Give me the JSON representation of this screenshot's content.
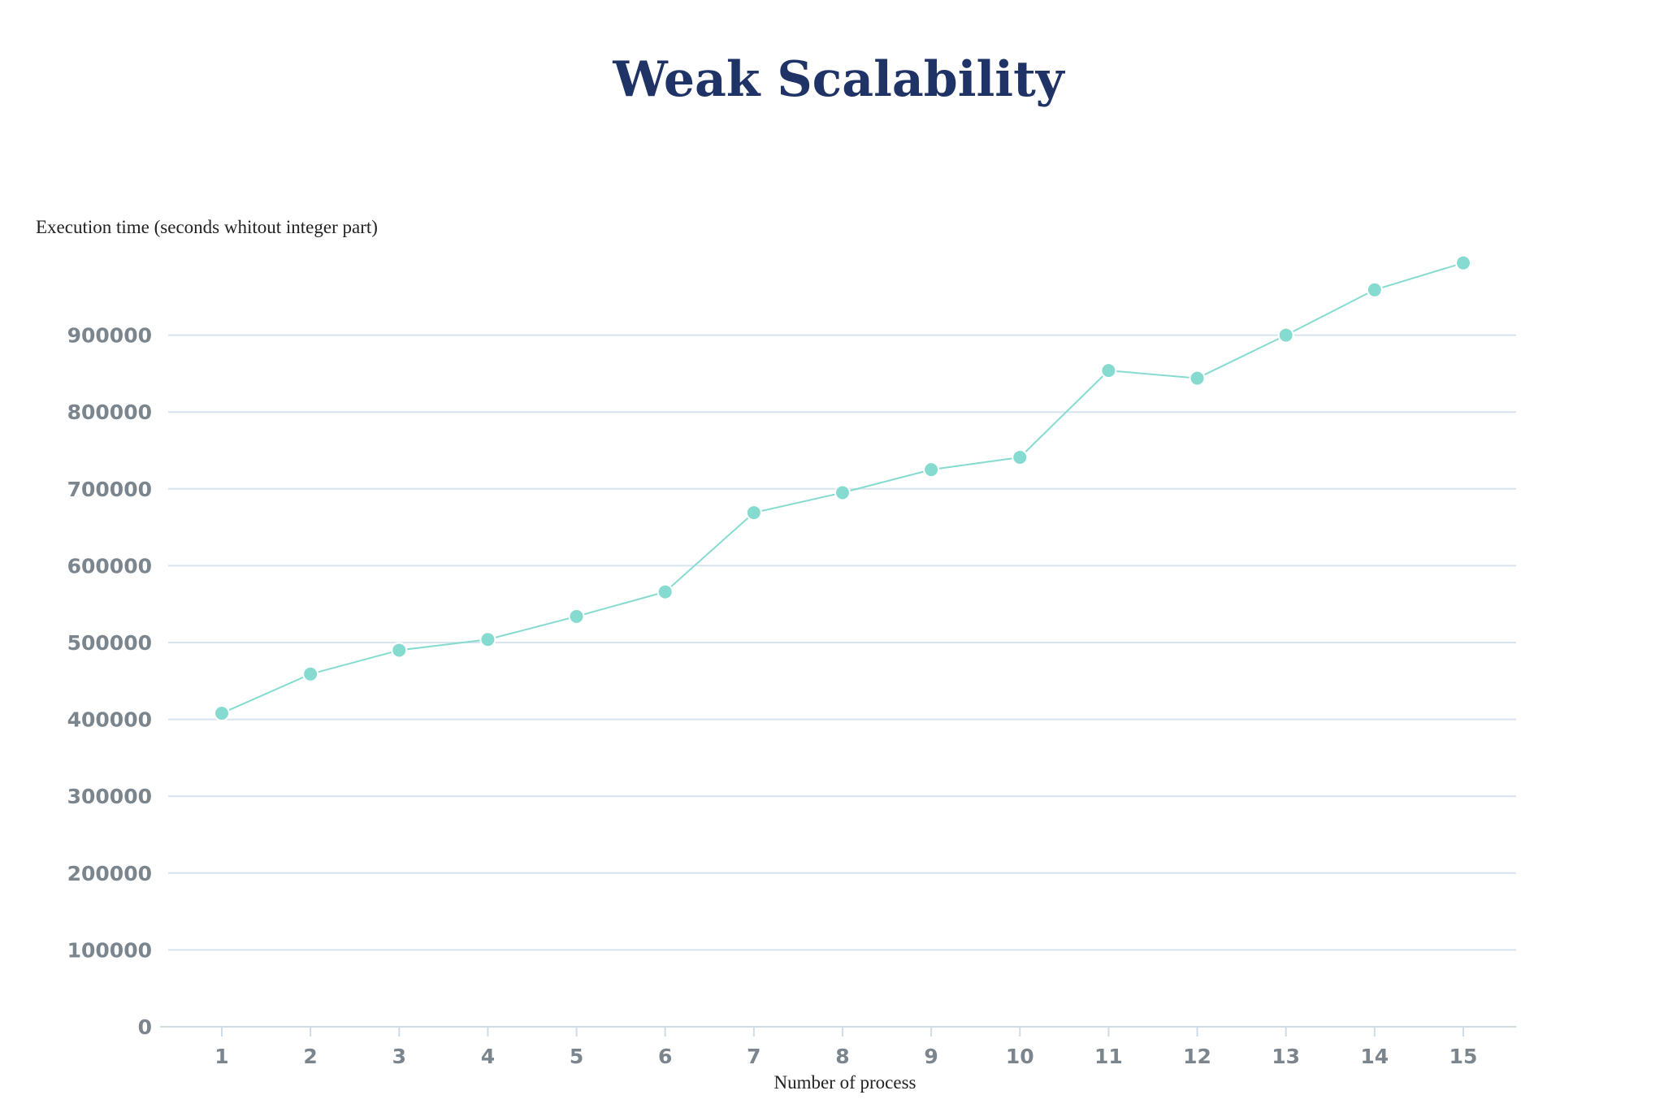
{
  "chart_data": {
    "type": "line",
    "title": "Weak Scalability",
    "ylabel": "Execution time (seconds whitout integer part)",
    "xlabel": "Number of process",
    "x": [
      1,
      2,
      3,
      4,
      5,
      6,
      7,
      8,
      9,
      10,
      11,
      12,
      13,
      14,
      15
    ],
    "y_ticks": [
      "0",
      "100000",
      "200000",
      "300000",
      "400000",
      "500000",
      "600000",
      "700000",
      "800000",
      "900000"
    ],
    "ylim": [
      0,
      1000000
    ],
    "grid": true,
    "series": [
      {
        "values": [
          408000,
          459000,
          490000,
          504000,
          534000,
          566000,
          669000,
          695000,
          725000,
          741000,
          854000,
          844000,
          900000,
          959000,
          994000
        ]
      }
    ],
    "colors": {
      "series": "#86dbd0",
      "title": "#1f3366",
      "grid": "#d7e3ee",
      "tick_label": "#7b858e"
    }
  }
}
